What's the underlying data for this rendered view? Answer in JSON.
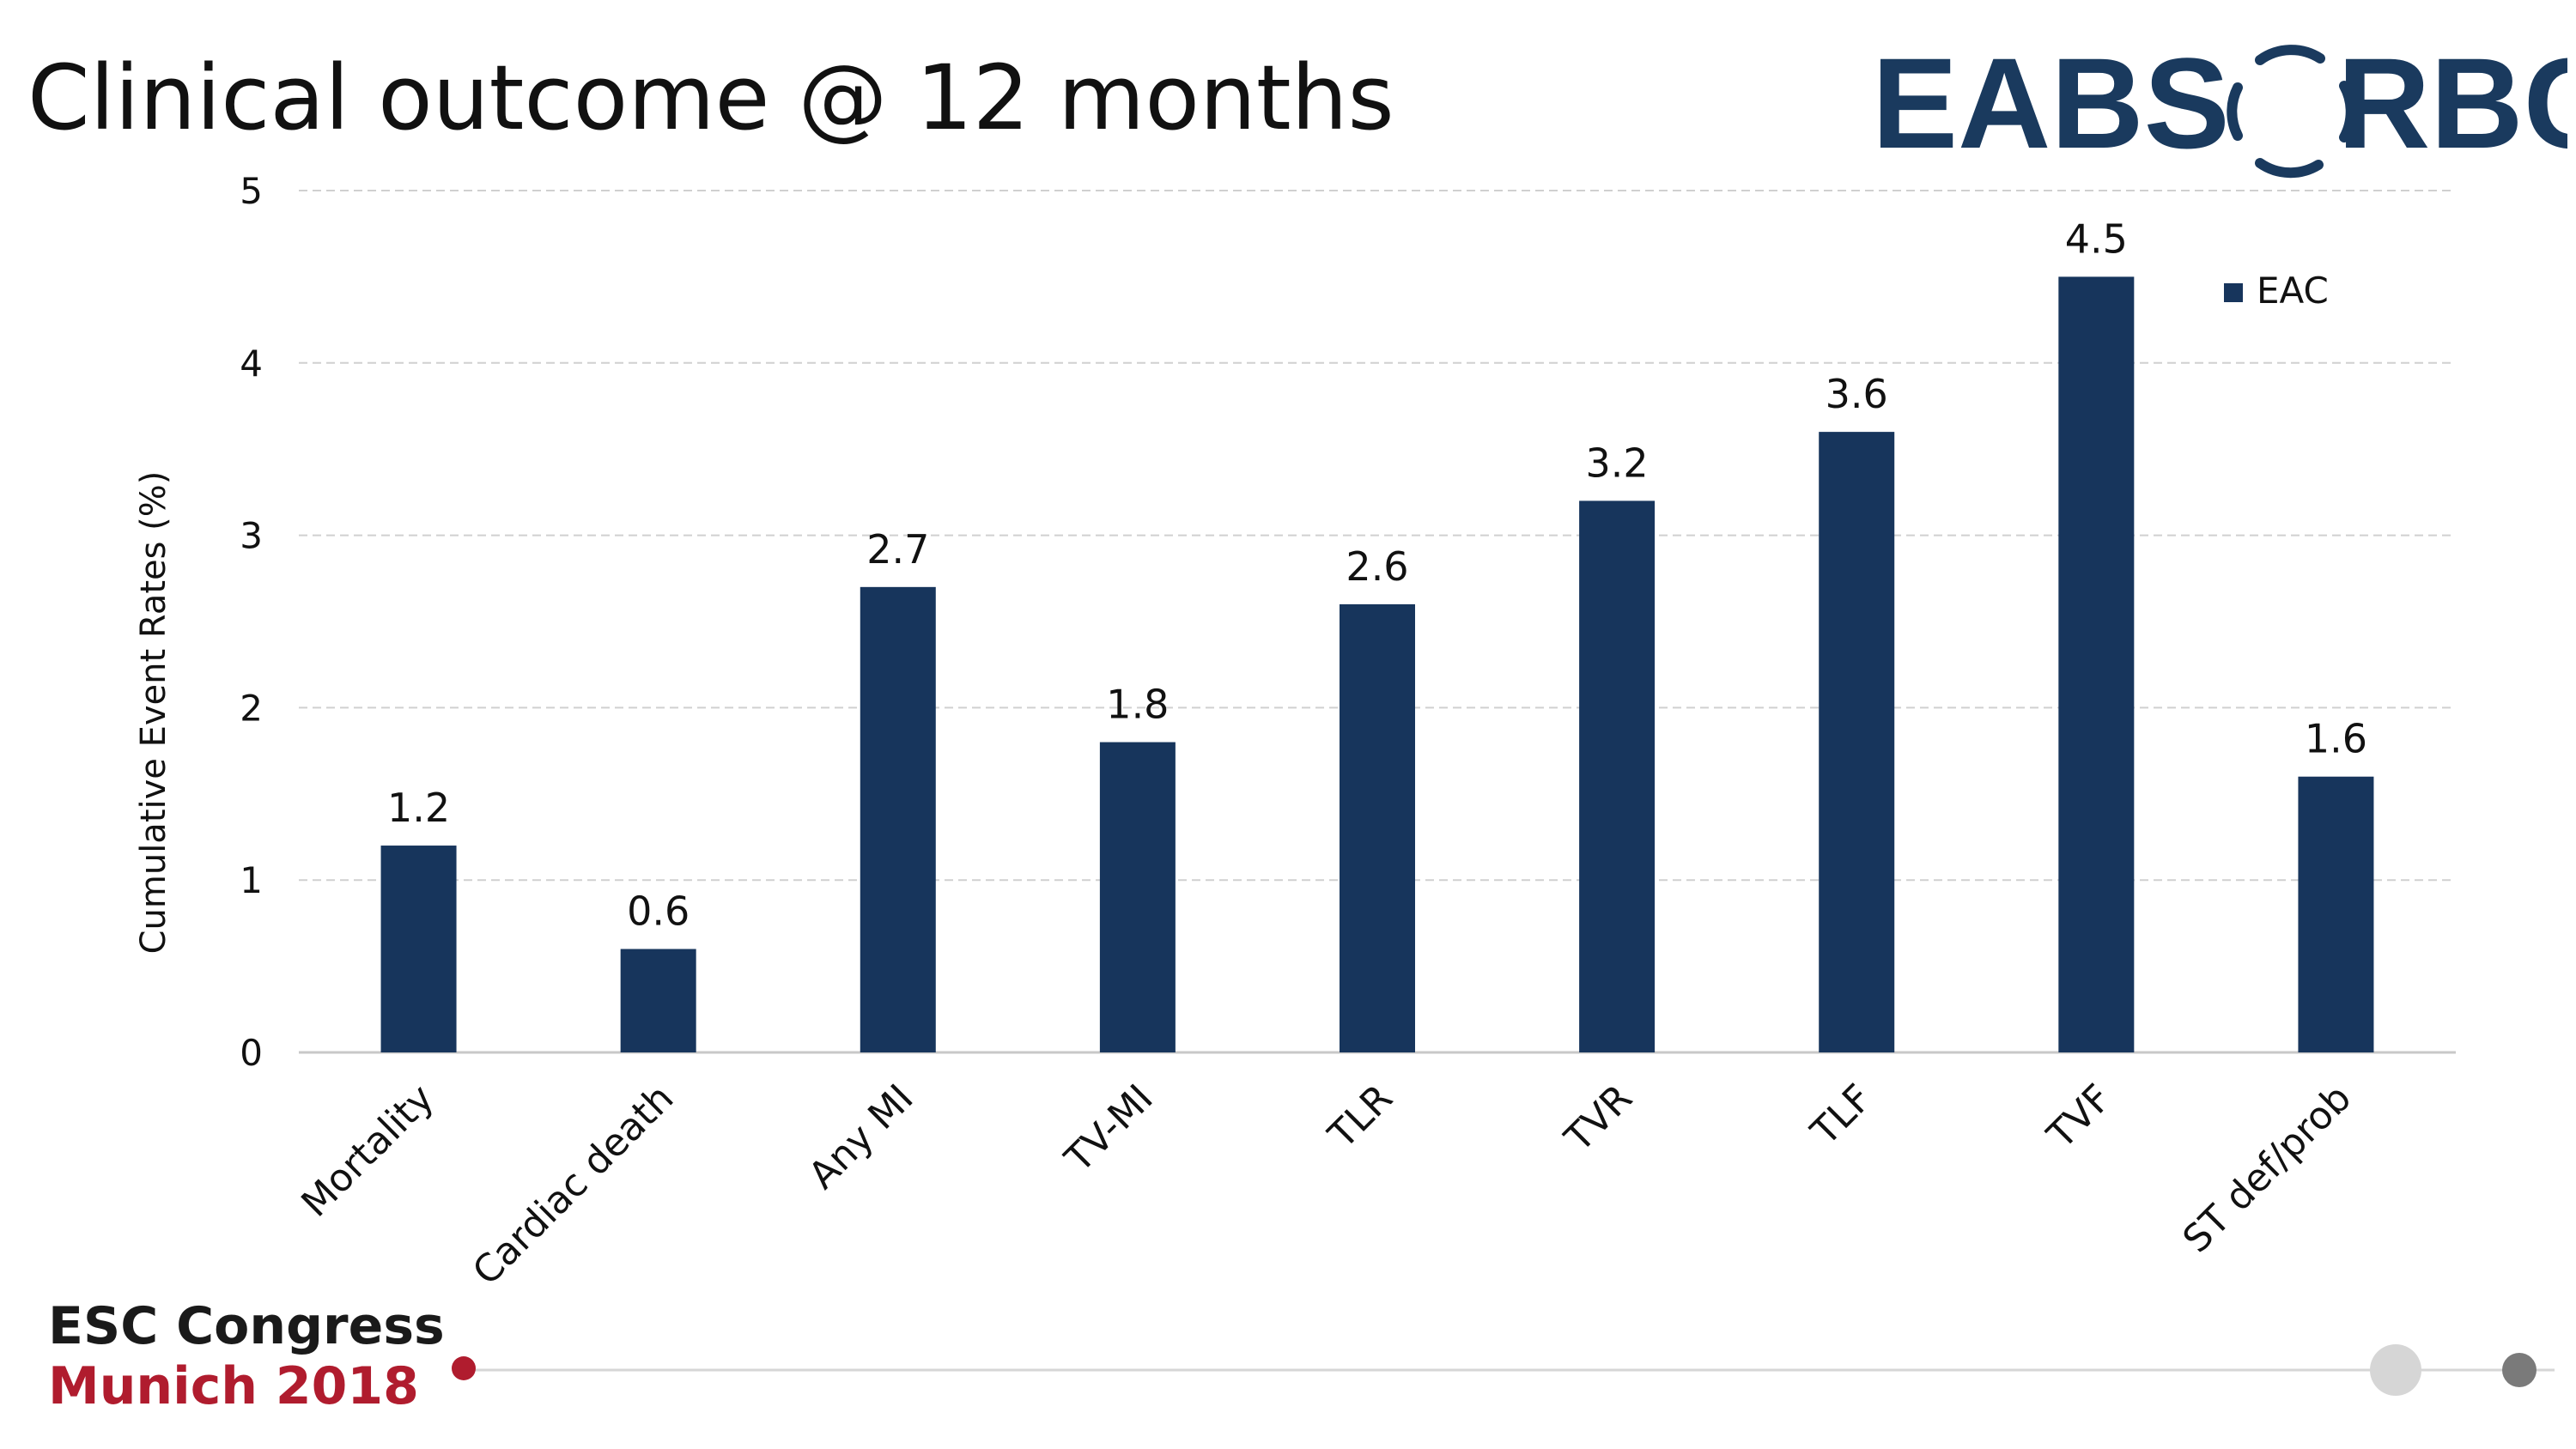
{
  "slide": {
    "title": "Clinical outcome @ 12 months"
  },
  "logo": {
    "left_text": "EABS",
    "right_text": "RBC"
  },
  "footer": {
    "congress_line1": "ESC Congress",
    "congress_line2": "Munich 2018"
  },
  "colors": {
    "bar": "#17355c",
    "logo": "#1a3a5e",
    "grid": "#d0d0d0",
    "accent_red": "#b01c2e",
    "nav_dot_light": "#d6d6d6",
    "nav_dot_dark": "#7a7a7a"
  },
  "chart_data": {
    "type": "bar",
    "categories": [
      "Mortality",
      "Cardiac death",
      "Any MI",
      "TV-MI",
      "TLR",
      "TVR",
      "TLF",
      "TVF",
      "ST def/prob"
    ],
    "series": [
      {
        "name": "EAC",
        "values": [
          1.2,
          0.6,
          2.7,
          1.8,
          2.6,
          3.2,
          3.6,
          4.5,
          1.6
        ]
      }
    ],
    "data_labels": [
      "1.2",
      "0.6",
      "2.7",
      "1.8",
      "2.6",
      "3.2",
      "3.6",
      "4.5",
      "1.6"
    ],
    "ylabel": "Cumulative Event Rates (%)",
    "ylim": [
      0,
      5
    ],
    "yticks": [
      0,
      1,
      2,
      3,
      4,
      5
    ],
    "grid": true,
    "legend_position": "top-right"
  }
}
